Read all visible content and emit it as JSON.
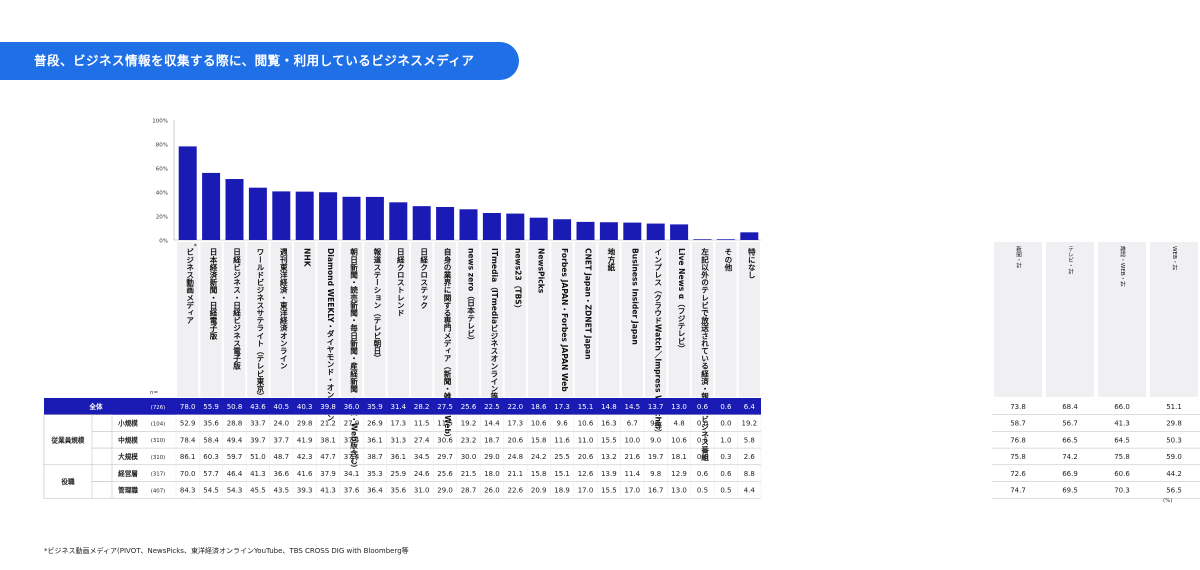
{
  "title": "普段、ビジネス情報を収集する際に、閲覧・利用しているビジネスメディア",
  "footnote": "*ビジネス動画メディア(PIVOT、NewsPicks、東洋経済オンラインYouTube、TBS CROSS DIG with Bloomberg等",
  "colors": {
    "bar": "#1a1ab4",
    "title_bg": "#1f6fe6",
    "total_row": "#1a1ab4",
    "col_bg": "#f0f0f3",
    "text": "#222222"
  },
  "chart_data": {
    "type": "bar",
    "ylim": [
      0,
      100
    ],
    "yticks": [
      "0%",
      "20%",
      "40%",
      "60%",
      "80%",
      "100%"
    ],
    "n_label": "n=",
    "categories": [
      "ビジネス動画メディア",
      "日本経済新聞・日経電子版",
      "日経ビジネス・日経ビジネス電子版",
      "ワールドビジネスサテライト（テレビ東京）",
      "週刊東洋経済・東洋経済オンライン",
      "NHK",
      "Diamond WEEKLY・ダイヤモンド・オンライン",
      "朝日新聞・読売新聞・毎日新聞・産経新聞（紙面・Web版含む）",
      "報道ステーション（テレビ朝日）",
      "日経クロストレンド",
      "日経クロステック",
      "自身の業界に関する専門メディア（新聞・雑誌・Web）",
      "news zero（日本テレビ）",
      "ITmedia（ITmediaビジネスオンライン等）",
      "news23（TBS）",
      "NewsPicks",
      "Forbes JAPAN・Forbes JAPAN Web",
      "CNET Japan・ZDNET Japan",
      "地方紙",
      "Business Insider Japan",
      "インプレス（クラウドWatch／Impress Watch等）",
      "Live News α（フジテレビ）",
      "左記以外のテレビで放送されている経済・報道・ビジネス番組",
      "その他",
      "特になし"
    ],
    "first_category_mark": "*",
    "summary_headers": [
      "新聞・計",
      "テレビ・計",
      "雑誌・WEB・計",
      "WEB・計"
    ],
    "group_labels": [
      "従業員規模",
      "役職"
    ],
    "side_note": "(%)",
    "rows": [
      {
        "label": "全体",
        "group": "",
        "n": "(726)",
        "values": [
          "78.0",
          "55.9",
          "50.8",
          "43.6",
          "40.5",
          "40.3",
          "39.8",
          "36.0",
          "35.9",
          "31.4",
          "28.2",
          "27.5",
          "25.6",
          "22.5",
          "22.0",
          "18.6",
          "17.3",
          "15.1",
          "14.8",
          "14.5",
          "13.7",
          "13.0",
          "0.6",
          "0.6",
          "6.4"
        ],
        "summary": [
          "73.8",
          "68.4",
          "66.0",
          "51.1"
        ]
      },
      {
        "label": "小規模",
        "group": "従業員規模",
        "n": "(104)",
        "values": [
          "52.9",
          "35.6",
          "28.8",
          "33.7",
          "24.0",
          "29.8",
          "21.2",
          "27.9",
          "26.9",
          "17.3",
          "11.5",
          "11.5",
          "19.2",
          "14.4",
          "17.3",
          "10.6",
          "9.6",
          "10.6",
          "16.3",
          "6.7",
          "9.6",
          "4.8",
          "0.0",
          "0.0",
          "19.2"
        ],
        "summary": [
          "58.7",
          "56.7",
          "41.3",
          "29.8"
        ]
      },
      {
        "label": "中規模",
        "group": "従業員規模",
        "n": "(310)",
        "values": [
          "78.4",
          "58.4",
          "49.4",
          "39.7",
          "37.7",
          "41.9",
          "38.1",
          "37.4",
          "36.1",
          "31.3",
          "27.4",
          "30.6",
          "23.2",
          "18.7",
          "20.6",
          "15.8",
          "11.6",
          "11.0",
          "15.5",
          "10.0",
          "9.0",
          "10.6",
          "0.6",
          "1.0",
          "5.8"
        ],
        "summary": [
          "76.8",
          "66.5",
          "64.5",
          "50.3"
        ]
      },
      {
        "label": "大規模",
        "group": "従業員規模",
        "n": "(310)",
        "values": [
          "86.1",
          "60.3",
          "59.7",
          "51.0",
          "48.7",
          "42.3",
          "47.7",
          "37.4",
          "38.7",
          "36.1",
          "34.5",
          "29.7",
          "30.0",
          "29.0",
          "24.8",
          "24.2",
          "25.5",
          "20.6",
          "13.2",
          "21.6",
          "19.7",
          "18.1",
          "0.6",
          "0.3",
          "2.6"
        ],
        "summary": [
          "75.8",
          "74.2",
          "75.8",
          "59.0"
        ]
      },
      {
        "label": "経営層",
        "group": "役職",
        "n": "(317)",
        "values": [
          "70.0",
          "57.7",
          "46.4",
          "41.3",
          "36.6",
          "41.6",
          "37.9",
          "34.1",
          "35.3",
          "25.9",
          "24.6",
          "25.6",
          "21.5",
          "18.0",
          "21.1",
          "15.8",
          "15.1",
          "12.6",
          "13.9",
          "11.4",
          "9.8",
          "12.9",
          "0.6",
          "0.6",
          "8.8"
        ],
        "summary": [
          "72.6",
          "66.9",
          "60.6",
          "44.2"
        ]
      },
      {
        "label": "管理職",
        "group": "役職",
        "n": "(407)",
        "values": [
          "84.3",
          "54.5",
          "54.3",
          "45.5",
          "43.5",
          "39.3",
          "41.3",
          "37.6",
          "36.4",
          "35.6",
          "31.0",
          "29.0",
          "28.7",
          "26.0",
          "22.6",
          "20.9",
          "18.9",
          "17.0",
          "15.5",
          "17.0",
          "16.7",
          "13.0",
          "0.5",
          "0.5",
          "4.4"
        ],
        "summary": [
          "74.7",
          "69.5",
          "70.3",
          "56.5"
        ]
      }
    ]
  }
}
